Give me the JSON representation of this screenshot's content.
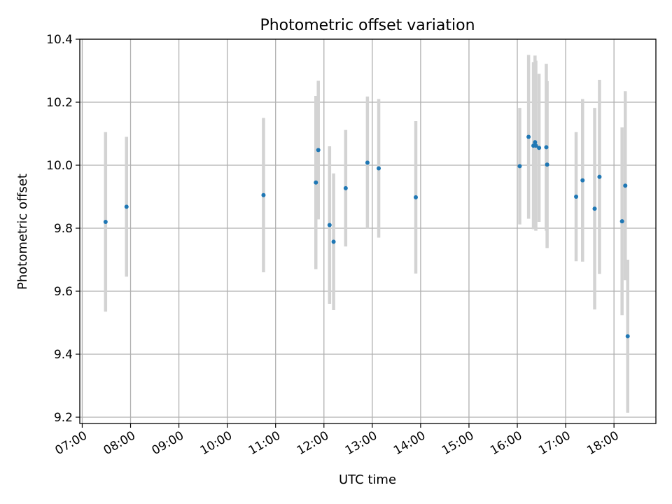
{
  "chart_data": {
    "type": "scatter",
    "title": "Photometric offset variation",
    "xlabel": "UTC time",
    "ylabel": "Photometric offset",
    "x_ticks": [
      "07:00",
      "08:00",
      "09:00",
      "10:00",
      "11:00",
      "12:00",
      "13:00",
      "14:00",
      "15:00",
      "16:00",
      "17:00",
      "18:00"
    ],
    "y_ticks": [
      "9.2",
      "9.4",
      "9.6",
      "9.8",
      "10.0",
      "10.2",
      "10.4"
    ],
    "xlim": [
      "06:57",
      "18:52"
    ],
    "ylim": [
      9.18,
      10.4
    ],
    "grid": true,
    "colors": {
      "marker": "#1f77b4",
      "errorbar": "#d3d3d3",
      "grid": "#b0b0b0"
    },
    "points": [
      {
        "time": "07:29",
        "y": 9.82,
        "err": 0.285
      },
      {
        "time": "07:55",
        "y": 9.868,
        "err": 0.222
      },
      {
        "time": "10:45",
        "y": 9.905,
        "err": 0.245
      },
      {
        "time": "11:50",
        "y": 9.945,
        "err": 0.275
      },
      {
        "time": "11:53",
        "y": 10.048,
        "err": 0.22
      },
      {
        "time": "12:07",
        "y": 9.81,
        "err": 0.25
      },
      {
        "time": "12:12",
        "y": 9.757,
        "err": 0.217
      },
      {
        "time": "12:27",
        "y": 9.927,
        "err": 0.185
      },
      {
        "time": "12:54",
        "y": 10.008,
        "err": 0.21
      },
      {
        "time": "13:08",
        "y": 9.99,
        "err": 0.22
      },
      {
        "time": "13:54",
        "y": 9.898,
        "err": 0.242
      },
      {
        "time": "16:03",
        "y": 9.997,
        "err": 0.185
      },
      {
        "time": "16:14",
        "y": 10.09,
        "err": 0.26
      },
      {
        "time": "16:20",
        "y": 10.062,
        "err": 0.265
      },
      {
        "time": "16:22",
        "y": 10.073,
        "err": 0.275
      },
      {
        "time": "16:23",
        "y": 10.062,
        "err": 0.27
      },
      {
        "time": "16:27",
        "y": 10.055,
        "err": 0.235
      },
      {
        "time": "16:36",
        "y": 10.057,
        "err": 0.265
      },
      {
        "time": "16:37",
        "y": 10.002,
        "err": 0.265
      },
      {
        "time": "17:13",
        "y": 9.9,
        "err": 0.205
      },
      {
        "time": "17:21",
        "y": 9.952,
        "err": 0.258
      },
      {
        "time": "17:36",
        "y": 9.862,
        "err": 0.32
      },
      {
        "time": "17:42",
        "y": 9.963,
        "err": 0.308
      },
      {
        "time": "18:10",
        "y": 9.822,
        "err": 0.298
      },
      {
        "time": "18:14",
        "y": 9.935,
        "err": 0.3
      },
      {
        "time": "18:17",
        "y": 9.457,
        "err": 0.243
      }
    ]
  }
}
